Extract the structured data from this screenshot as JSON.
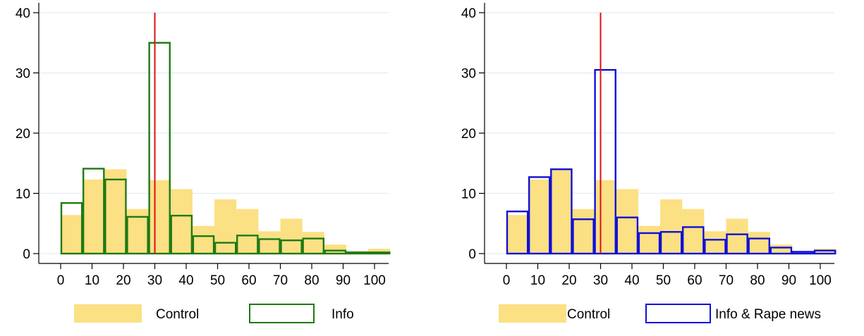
{
  "chart_data": [
    {
      "type": "bar",
      "bin_edges": [
        0,
        7,
        14,
        21,
        28,
        35,
        42,
        49,
        56,
        63,
        70,
        77,
        84,
        91,
        98,
        105
      ],
      "ylim": [
        0,
        40
      ],
      "xlim": [
        0,
        105
      ],
      "x_ticks": [
        0,
        10,
        20,
        30,
        40,
        50,
        60,
        70,
        80,
        90,
        100
      ],
      "y_ticks": [
        0,
        10,
        20,
        30,
        40
      ],
      "x_tick_labels": [
        "0",
        "10",
        "20",
        "30",
        "40",
        "50",
        "60",
        "70",
        "80",
        "90",
        "100"
      ],
      "y_tick_labels": [
        "0",
        "10",
        "20",
        "30",
        "40"
      ],
      "reference_line_x": 30,
      "grid": true,
      "legend_position": "bottom",
      "series": [
        {
          "name": "Control",
          "style": "filled",
          "color": "#fbe084",
          "values": [
            6.4,
            12.3,
            14.0,
            7.4,
            12.2,
            10.7,
            4.6,
            9.0,
            7.4,
            3.7,
            5.8,
            3.6,
            1.5,
            0.4,
            0.8
          ]
        },
        {
          "name": "Info",
          "style": "outline",
          "color": "#1f7a14",
          "values": [
            8.4,
            14.1,
            12.3,
            6.1,
            35.0,
            6.3,
            2.9,
            1.8,
            3.0,
            2.4,
            2.2,
            2.5,
            0.5,
            0.2,
            0.2
          ]
        }
      ]
    },
    {
      "type": "bar",
      "bin_edges": [
        0,
        7,
        14,
        21,
        28,
        35,
        42,
        49,
        56,
        63,
        70,
        77,
        84,
        91,
        98,
        105
      ],
      "ylim": [
        0,
        40
      ],
      "xlim": [
        0,
        105
      ],
      "x_ticks": [
        0,
        10,
        20,
        30,
        40,
        50,
        60,
        70,
        80,
        90,
        100
      ],
      "y_ticks": [
        0,
        10,
        20,
        30,
        40
      ],
      "x_tick_labels": [
        "0",
        "10",
        "20",
        "30",
        "40",
        "50",
        "60",
        "70",
        "80",
        "90",
        "100"
      ],
      "y_tick_labels": [
        "0",
        "10",
        "20",
        "30",
        "40"
      ],
      "reference_line_x": 30,
      "grid": true,
      "legend_position": "bottom",
      "series": [
        {
          "name": "Control",
          "style": "filled",
          "color": "#fbe084",
          "values": [
            6.4,
            12.3,
            14.0,
            7.4,
            12.2,
            10.7,
            4.6,
            9.0,
            7.4,
            3.7,
            5.8,
            3.6,
            1.5,
            0.4,
            0.8
          ]
        },
        {
          "name": "Info & Rape news",
          "style": "outline",
          "color": "#1010d8",
          "values": [
            7.0,
            12.7,
            14.0,
            5.7,
            30.5,
            6.0,
            3.4,
            3.6,
            4.4,
            2.3,
            3.2,
            2.5,
            1.0,
            0.3,
            0.5
          ]
        }
      ]
    }
  ],
  "colors": {
    "reference_line": "#e01010",
    "grid": "#e4ecf0",
    "axis": "#000000"
  }
}
